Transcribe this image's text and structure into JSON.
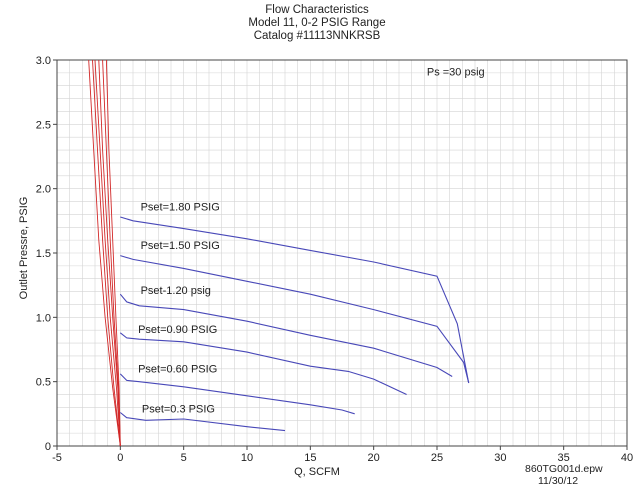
{
  "chart_data": {
    "type": "line",
    "title_lines": [
      "Flow Characteristics",
      "Model 11, 0-2 PSIG Range",
      "Catalog #11113NNKRSB"
    ],
    "xlabel": "Q, SCFM",
    "ylabel": "Outlet Pressre, PSIG",
    "xlim": [
      -5,
      40
    ],
    "ylim": [
      0,
      3.0
    ],
    "x_ticks": [
      -5,
      0,
      5,
      10,
      15,
      20,
      25,
      30,
      35,
      40
    ],
    "y_ticks": [
      0,
      0.5,
      1.0,
      1.5,
      2.0,
      2.5,
      3.0
    ],
    "grid": true,
    "annotations": [
      {
        "text": "Ps =30 psig",
        "x": 24.2,
        "y": 2.88
      }
    ],
    "series": [
      {
        "name": "Pset=1.80 PSIG",
        "label_at": [
          1.6,
          1.83
        ],
        "color": "#4848b8",
        "x": [
          0,
          1,
          5,
          10,
          15,
          20,
          25,
          26.6,
          27.5
        ],
        "y": [
          1.78,
          1.75,
          1.69,
          1.61,
          1.52,
          1.43,
          1.32,
          0.95,
          0.49
        ]
      },
      {
        "name": "Pset=1.50 PSIG",
        "label_at": [
          1.6,
          1.53
        ],
        "color": "#4848b8",
        "x": [
          0,
          1,
          5,
          10,
          15,
          20,
          25,
          27.1,
          27.5
        ],
        "y": [
          1.48,
          1.45,
          1.38,
          1.28,
          1.18,
          1.06,
          0.93,
          0.65,
          0.49
        ]
      },
      {
        "name": "Pset-1.20 psig",
        "label_at": [
          1.6,
          1.18
        ],
        "color": "#4848b8",
        "x": [
          0,
          0.5,
          1.5,
          5,
          10,
          15,
          20,
          25,
          26.2
        ],
        "y": [
          1.18,
          1.12,
          1.09,
          1.06,
          0.97,
          0.86,
          0.76,
          0.61,
          0.54
        ]
      },
      {
        "name": "Pset=0.90 PSIG",
        "label_at": [
          1.4,
          0.88
        ],
        "color": "#4848b8",
        "x": [
          0,
          0.5,
          1.5,
          5,
          10,
          15,
          18,
          20,
          22.6
        ],
        "y": [
          0.88,
          0.84,
          0.83,
          0.81,
          0.73,
          0.62,
          0.58,
          0.52,
          0.4
        ]
      },
      {
        "name": "Pset=0.60 PSIG",
        "label_at": [
          1.4,
          0.57
        ],
        "color": "#4848b8",
        "x": [
          0,
          0.5,
          1.5,
          5,
          10,
          15,
          17.5,
          18.5
        ],
        "y": [
          0.56,
          0.51,
          0.5,
          0.46,
          0.39,
          0.32,
          0.28,
          0.25
        ]
      },
      {
        "name": "Pset=0.3 PSIG",
        "label_at": [
          1.7,
          0.26
        ],
        "color": "#4848b8",
        "x": [
          0,
          0.5,
          2,
          5,
          10,
          13
        ],
        "y": [
          0.26,
          0.22,
          0.2,
          0.21,
          0.15,
          0.12
        ]
      }
    ],
    "load_lines": {
      "color": "#d22828",
      "lines": [
        {
          "x": [
            -2.2,
            -1.8,
            -1.4,
            -1.0,
            -0.5,
            0.0
          ],
          "y": [
            3.0,
            2.3,
            1.6,
            1.0,
            0.45,
            0.0
          ]
        },
        {
          "x": [
            -2.0,
            -1.6,
            -1.2,
            -0.8,
            -0.3,
            0.0
          ],
          "y": [
            3.0,
            2.3,
            1.6,
            1.0,
            0.45,
            0.0
          ]
        },
        {
          "x": [
            -1.7,
            -1.4,
            -1.0,
            -0.6,
            -0.2,
            0.0
          ],
          "y": [
            3.0,
            2.3,
            1.6,
            1.0,
            0.45,
            0.0
          ]
        },
        {
          "x": [
            -1.4,
            -1.1,
            -0.8,
            -0.5,
            -0.15,
            0.0
          ],
          "y": [
            3.0,
            2.3,
            1.6,
            1.0,
            0.45,
            0.0
          ]
        },
        {
          "x": [
            -1.1,
            -0.9,
            -0.6,
            -0.35,
            -0.1,
            0.0
          ],
          "y": [
            3.0,
            2.3,
            1.6,
            1.0,
            0.45,
            0.0
          ]
        },
        {
          "x": [
            -2.5,
            -2.1,
            -1.7,
            -1.2,
            -0.6,
            0.0
          ],
          "y": [
            3.0,
            2.3,
            1.6,
            1.0,
            0.45,
            0.0
          ]
        }
      ]
    }
  },
  "footer": {
    "file": "860TG001d.epw",
    "date": "11/30/12"
  }
}
